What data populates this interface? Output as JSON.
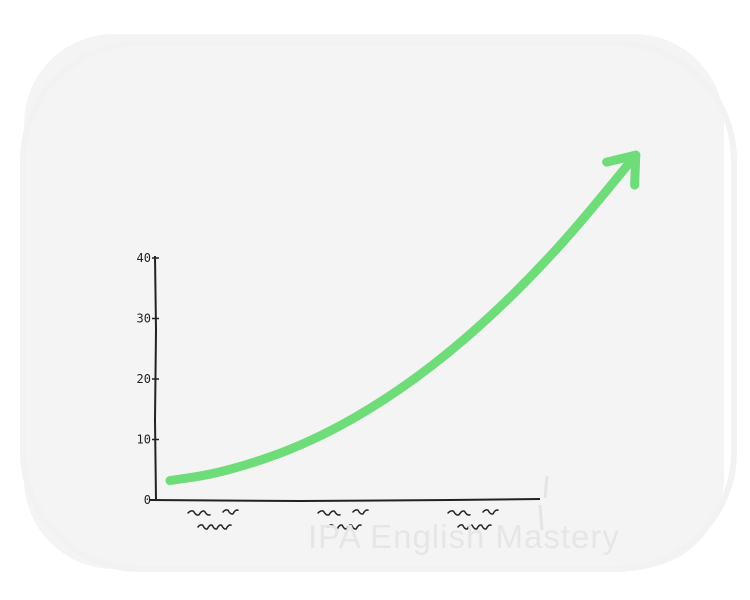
{
  "watermark": "IPA English Mastery",
  "chart_data": {
    "type": "line",
    "title": "",
    "xlabel": "",
    "ylabel": "",
    "yticks": [
      "0",
      "10",
      "20",
      "30",
      "40"
    ],
    "ylim": [
      0,
      40
    ],
    "xlim": [
      0,
      1
    ],
    "categories_scribbled": 3,
    "grid": false,
    "legend": "none",
    "series": [
      {
        "color": "#6fdc7a",
        "arrow": true,
        "x": [
          0.0,
          0.1,
          0.2,
          0.3,
          0.4,
          0.5,
          0.6,
          0.7,
          0.8,
          0.9,
          1.0,
          1.15
        ],
        "y": [
          3.2,
          4.2,
          6.0,
          8.4,
          11.5,
          15.3,
          19.8,
          25.0,
          30.9,
          37.5,
          44.8,
          57.0
        ]
      }
    ]
  }
}
